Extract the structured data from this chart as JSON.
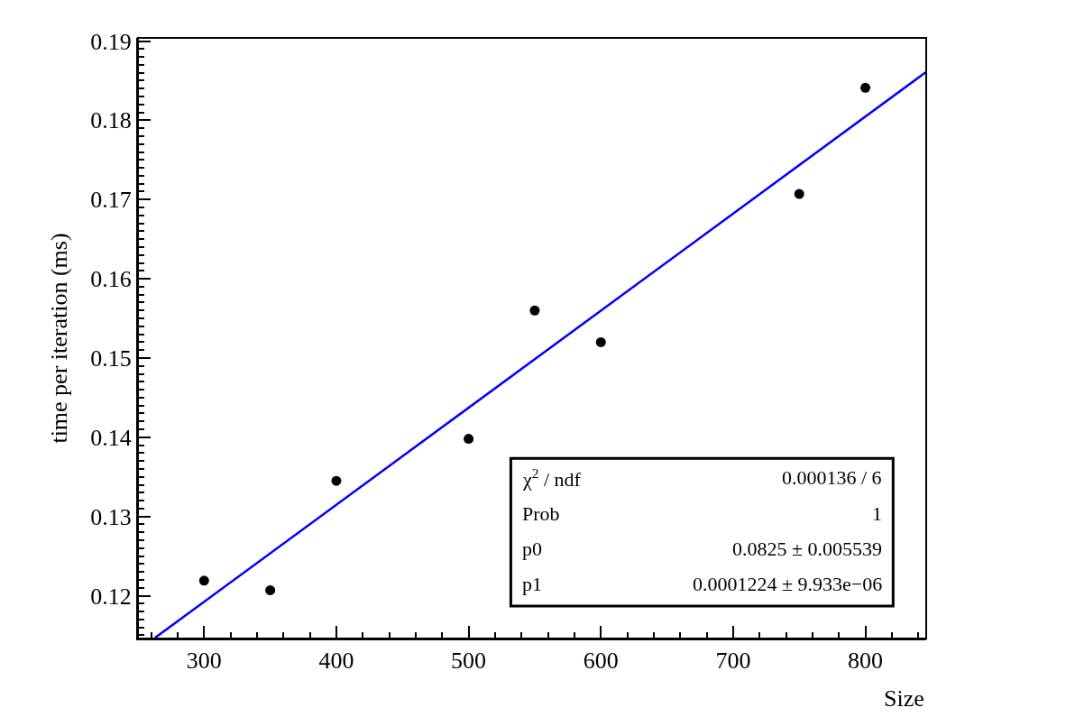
{
  "chart_data": {
    "type": "scatter",
    "xlabel": "Size",
    "ylabel": "time per iteration (ms)",
    "xlim": [
      250,
      846
    ],
    "xticks": [
      300,
      400,
      500,
      600,
      700,
      800
    ],
    "ylim": [
      0.1146,
      0.1904
    ],
    "yticks": [
      0.12,
      0.13,
      0.14,
      0.15,
      0.16,
      0.17,
      0.18,
      0.19
    ],
    "series": [
      {
        "color": "#000000",
        "marker": "circle",
        "x": [
          300,
          350,
          400,
          500,
          550,
          600,
          750,
          800
        ],
        "values": [
          0.1219,
          0.1207,
          0.1345,
          0.1398,
          0.156,
          0.152,
          0.1707,
          0.1841
        ]
      },
      {
        "type": "line",
        "color": "#0000ff",
        "line_style": "solid",
        "x": [
          263,
          846
        ],
        "values": [
          0.1147,
          0.1861
        ]
      }
    ],
    "annotations": [
      "χ$^{2}$ / ndf",
      "0.000136 / 6",
      "Prob",
      "1",
      "p0",
      "0.0825 ± 0.005539",
      "p1",
      "0.0001224 ± 9.933e−06"
    ]
  }
}
